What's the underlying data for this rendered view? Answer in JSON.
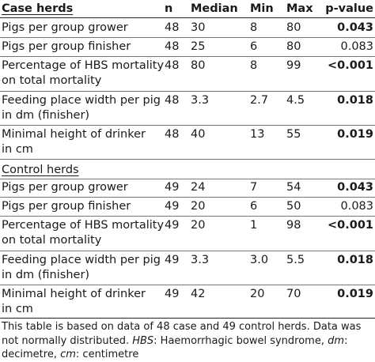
{
  "header": {
    "label": "Case herds",
    "n": "n",
    "median": "Median",
    "min": "Min",
    "max": "Max",
    "p": "p-value"
  },
  "control_title": "Control herds",
  "case_rows": [
    {
      "label": [
        "Pigs per group grower"
      ],
      "n": "48",
      "median": "30",
      "min": "8",
      "max": "80",
      "p": "0.043",
      "p_bold": true
    },
    {
      "label": [
        "Pigs per group finisher"
      ],
      "n": "48",
      "median": "25",
      "min": "6",
      "max": "80",
      "p": "0.083",
      "p_bold": false
    },
    {
      "label": [
        "Percentage of HBS mortality",
        "on total mortality"
      ],
      "n": "48",
      "median": "80",
      "min": "8",
      "max": "99",
      "p": "<0.001",
      "p_bold": true
    },
    {
      "label": [
        "Feeding place width per pig",
        "in dm (finisher)"
      ],
      "n": "48",
      "median": "3.3",
      "min": "2.7",
      "max": "4.5",
      "p": "0.018",
      "p_bold": true
    },
    {
      "label": [
        "Minimal height of drinker",
        "in cm"
      ],
      "n": "48",
      "median": "40",
      "min": "13",
      "max": "55",
      "p": "0.019",
      "p_bold": true
    }
  ],
  "control_rows": [
    {
      "label": [
        "Pigs per group grower"
      ],
      "n": "49",
      "median": "24",
      "min": "7",
      "max": "54",
      "p": "0.043",
      "p_bold": true
    },
    {
      "label": [
        "Pigs per group finisher"
      ],
      "n": "49",
      "median": "20",
      "min": "6",
      "max": "50",
      "p": "0.083",
      "p_bold": false
    },
    {
      "label": [
        "Percentage of HBS mortality",
        "on total mortality"
      ],
      "n": "49",
      "median": "20",
      "min": "1",
      "max": "98",
      "p": "<0.001",
      "p_bold": true
    },
    {
      "label": [
        "Feeding place width per pig",
        "in dm (finisher)"
      ],
      "n": "49",
      "median": "3.3",
      "min": "3.0",
      "max": "5.5",
      "p": "0.018",
      "p_bold": true
    },
    {
      "label": [
        "Minimal height of drinker",
        "in cm"
      ],
      "n": "49",
      "median": "42",
      "min": "20",
      "max": "70",
      "p": "0.019",
      "p_bold": true
    }
  ],
  "footnote": {
    "t1": "This table is based on data of 48 case and 49 control herds. Data was not normally distributed. ",
    "a1": "HBS",
    "t2": ": Haemorrhagic bowel syndrome, ",
    "a2": "dm",
    "t3": ": decimetre, ",
    "a3": "cm",
    "t4": ": centimetre"
  }
}
